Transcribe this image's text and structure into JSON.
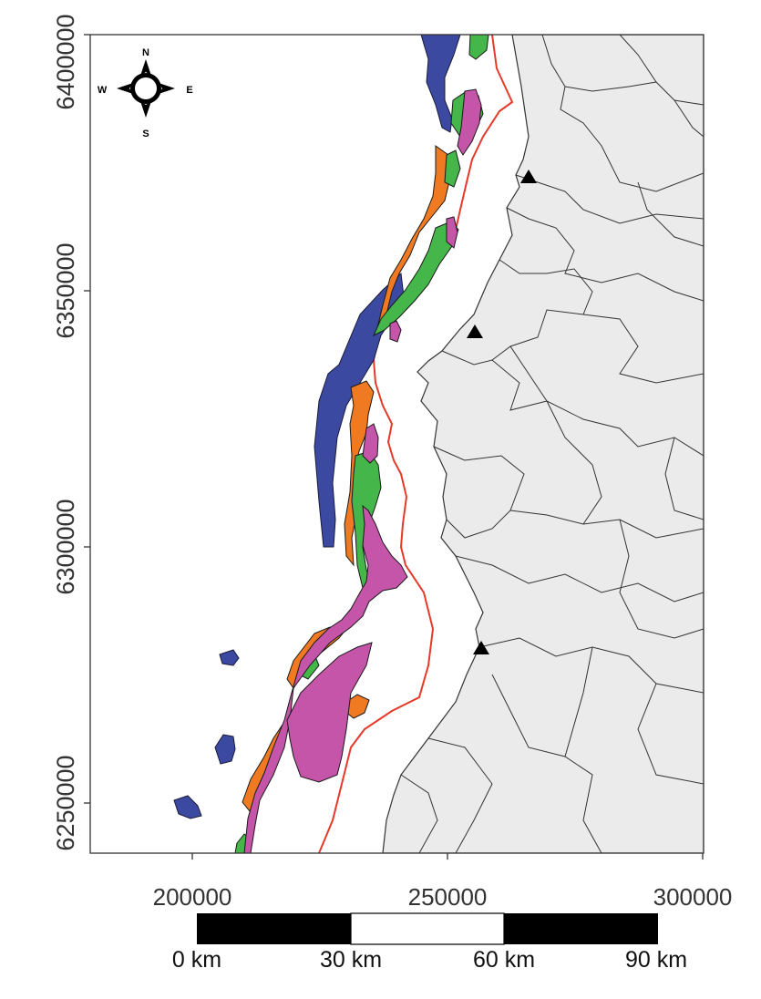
{
  "map": {
    "y_ticks": [
      "6400000",
      "6350000",
      "6300000",
      "6250000"
    ],
    "x_ticks": [
      "200000",
      "250000",
      "300000"
    ],
    "compass": {
      "n": "N",
      "e": "E",
      "s": "S",
      "w": "W"
    },
    "scale_bar": {
      "labels": [
        "0 km",
        "30 km",
        "60 km",
        "90 km"
      ]
    },
    "colors": {
      "land": "#ebebeb",
      "boundary": "#333333",
      "contour_line": "#e53a2a",
      "zone_blue": "#3b4aa0",
      "zone_orange": "#f07a22",
      "zone_green": "#45b649",
      "zone_magenta": "#c455a8"
    },
    "markers": [
      "triangle",
      "triangle",
      "triangle"
    ]
  }
}
